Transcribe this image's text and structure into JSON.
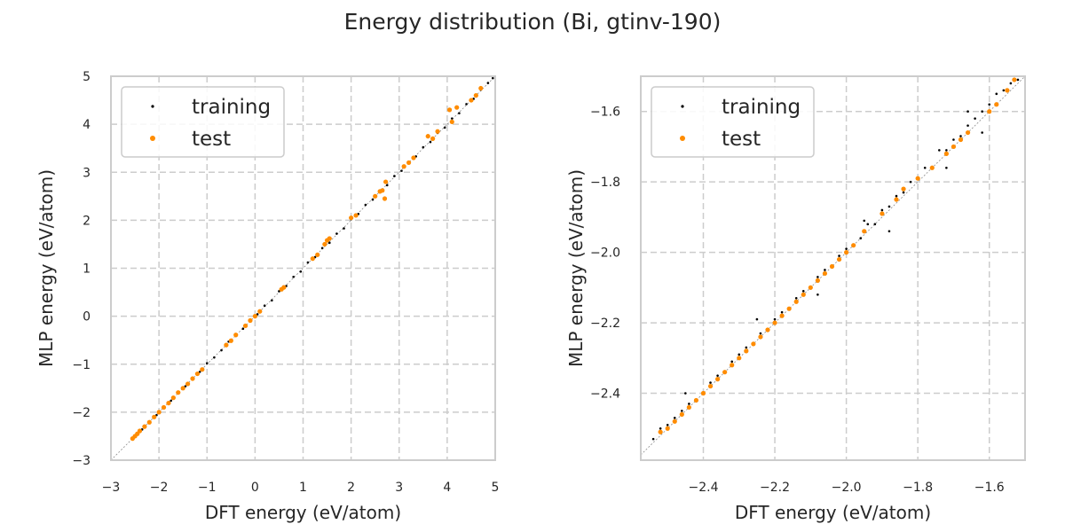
{
  "figure": {
    "suptitle": "Energy distribution (Bi, gtinv-190)"
  },
  "colors": {
    "training": "#000000",
    "test": "#ff8c00",
    "grid": "#cccccc",
    "spine": "#cccccc",
    "diagonal": "#8c8c8c"
  },
  "chart_data": [
    {
      "type": "scatter",
      "xlabel": "DFT energy (eV/atom)",
      "ylabel": "MLP energy (eV/atom)",
      "xlim": [
        -3,
        5
      ],
      "ylim": [
        -3,
        5
      ],
      "xticks": [
        -3,
        -2,
        -1,
        0,
        1,
        2,
        3,
        4,
        5
      ],
      "yticks": [
        -3,
        -2,
        -1,
        0,
        1,
        2,
        3,
        4,
        5
      ],
      "xtick_labels": [
        "−3",
        "−2",
        "−1",
        "0",
        "1",
        "2",
        "3",
        "4",
        "5"
      ],
      "ytick_labels": [
        "−3",
        "−2",
        "−1",
        "0",
        "1",
        "2",
        "3",
        "4",
        "5"
      ],
      "grid": true,
      "legend_position": "upper-left",
      "reference_line": "y = x",
      "series": [
        {
          "name": "training",
          "points": [
            [
              -2.55,
              -2.54
            ],
            [
              -2.45,
              -2.44
            ],
            [
              -2.35,
              -2.36
            ],
            [
              -2.2,
              -2.19
            ],
            [
              -2.05,
              -2.06
            ],
            [
              -1.9,
              -1.88
            ],
            [
              -1.75,
              -1.76
            ],
            [
              -1.6,
              -1.59
            ],
            [
              -1.45,
              -1.46
            ],
            [
              -1.3,
              -1.29
            ],
            [
              -1.15,
              -1.16
            ],
            [
              -1.0,
              -0.98
            ],
            [
              -0.85,
              -0.86
            ],
            [
              -0.7,
              -0.71
            ],
            [
              -0.55,
              -0.53
            ],
            [
              -0.4,
              -0.41
            ],
            [
              -0.25,
              -0.26
            ],
            [
              -0.1,
              -0.08
            ],
            [
              0.05,
              0.04
            ],
            [
              0.2,
              0.22
            ],
            [
              0.35,
              0.33
            ],
            [
              0.5,
              0.52
            ],
            [
              0.65,
              0.63
            ],
            [
              0.8,
              0.82
            ],
            [
              0.95,
              0.93
            ],
            [
              1.1,
              1.12
            ],
            [
              1.25,
              1.23
            ],
            [
              1.4,
              1.42
            ],
            [
              1.55,
              1.53
            ],
            [
              1.7,
              1.72
            ],
            [
              1.85,
              1.83
            ],
            [
              2.0,
              2.02
            ],
            [
              2.15,
              2.13
            ],
            [
              2.3,
              2.32
            ],
            [
              2.45,
              2.43
            ],
            [
              2.6,
              2.62
            ],
            [
              2.75,
              2.73
            ],
            [
              2.9,
              2.92
            ],
            [
              3.05,
              3.03
            ],
            [
              3.2,
              3.22
            ],
            [
              3.35,
              3.33
            ],
            [
              3.5,
              3.52
            ],
            [
              3.65,
              3.63
            ],
            [
              3.8,
              3.82
            ],
            [
              3.95,
              3.93
            ],
            [
              4.1,
              4.12
            ],
            [
              4.25,
              4.23
            ],
            [
              4.4,
              4.42
            ],
            [
              4.55,
              4.53
            ],
            [
              4.7,
              4.72
            ],
            [
              4.85,
              4.86
            ],
            [
              4.95,
              4.96
            ]
          ]
        },
        {
          "name": "test",
          "points": [
            [
              -2.55,
              -2.55
            ],
            [
              -2.5,
              -2.5
            ],
            [
              -2.45,
              -2.45
            ],
            [
              -2.4,
              -2.39
            ],
            [
              -2.3,
              -2.3
            ],
            [
              -2.2,
              -2.21
            ],
            [
              -2.1,
              -2.1
            ],
            [
              -2.0,
              -2.0
            ],
            [
              -1.9,
              -1.9
            ],
            [
              -1.8,
              -1.81
            ],
            [
              -1.7,
              -1.7
            ],
            [
              -1.6,
              -1.59
            ],
            [
              -1.5,
              -1.5
            ],
            [
              -1.4,
              -1.41
            ],
            [
              -1.3,
              -1.3
            ],
            [
              -1.2,
              -1.2
            ],
            [
              -1.1,
              -1.11
            ],
            [
              -0.6,
              -0.6
            ],
            [
              -0.5,
              -0.51
            ],
            [
              -0.4,
              -0.39
            ],
            [
              -0.2,
              -0.2
            ],
            [
              -0.1,
              -0.09
            ],
            [
              0.0,
              0.0
            ],
            [
              0.1,
              0.1
            ],
            [
              0.55,
              0.56
            ],
            [
              0.6,
              0.6
            ],
            [
              1.2,
              1.2
            ],
            [
              1.3,
              1.28
            ],
            [
              1.45,
              1.5
            ],
            [
              1.5,
              1.58
            ],
            [
              1.55,
              1.62
            ],
            [
              2.0,
              2.05
            ],
            [
              2.1,
              2.1
            ],
            [
              2.5,
              2.5
            ],
            [
              2.6,
              2.6
            ],
            [
              2.65,
              2.62
            ],
            [
              2.7,
              2.45
            ],
            [
              2.72,
              2.8
            ],
            [
              3.1,
              3.12
            ],
            [
              3.2,
              3.2
            ],
            [
              3.3,
              3.3
            ],
            [
              3.6,
              3.75
            ],
            [
              3.7,
              3.7
            ],
            [
              3.8,
              3.85
            ],
            [
              4.05,
              4.3
            ],
            [
              4.1,
              4.05
            ],
            [
              4.2,
              4.35
            ],
            [
              4.5,
              4.5
            ],
            [
              4.6,
              4.6
            ],
            [
              4.7,
              4.75
            ]
          ]
        }
      ]
    },
    {
      "type": "scatter",
      "xlabel": "DFT energy (eV/atom)",
      "ylabel": "MLP energy (eV/atom)",
      "xlim": [
        -2.575,
        -1.5
      ],
      "ylim": [
        -2.59,
        -1.5
      ],
      "xticks": [
        -2.4,
        -2.2,
        -2.0,
        -1.8,
        -1.6
      ],
      "yticks": [
        -2.4,
        -2.2,
        -2.0,
        -1.8,
        -1.6
      ],
      "xtick_labels": [
        "−2.4",
        "−2.2",
        "−2.0",
        "−1.8",
        "−1.6"
      ],
      "ytick_labels": [
        "−2.4",
        "−2.2",
        "−2.0",
        "−1.8",
        "−1.6"
      ],
      "grid": true,
      "legend_position": "upper-left",
      "reference_line": "y = x",
      "series": [
        {
          "name": "training",
          "points": [
            [
              -2.54,
              -2.53
            ],
            [
              -2.52,
              -2.5
            ],
            [
              -2.5,
              -2.49
            ],
            [
              -2.48,
              -2.47
            ],
            [
              -2.46,
              -2.45
            ],
            [
              -2.44,
              -2.43
            ],
            [
              -2.42,
              -2.42
            ],
            [
              -2.4,
              -2.4
            ],
            [
              -2.38,
              -2.37
            ],
            [
              -2.36,
              -2.35
            ],
            [
              -2.34,
              -2.34
            ],
            [
              -2.32,
              -2.31
            ],
            [
              -2.3,
              -2.29
            ],
            [
              -2.28,
              -2.27
            ],
            [
              -2.26,
              -2.26
            ],
            [
              -2.24,
              -2.23
            ],
            [
              -2.22,
              -2.22
            ],
            [
              -2.2,
              -2.19
            ],
            [
              -2.18,
              -2.17
            ],
            [
              -2.16,
              -2.16
            ],
            [
              -2.14,
              -2.13
            ],
            [
              -2.12,
              -2.11
            ],
            [
              -2.1,
              -2.1
            ],
            [
              -2.08,
              -2.07
            ],
            [
              -2.06,
              -2.05
            ],
            [
              -2.04,
              -2.04
            ],
            [
              -2.02,
              -2.01
            ],
            [
              -2.0,
              -1.99
            ],
            [
              -1.98,
              -1.98
            ],
            [
              -1.96,
              -1.96
            ],
            [
              -1.94,
              -1.92
            ],
            [
              -1.92,
              -1.92
            ],
            [
              -1.9,
              -1.88
            ],
            [
              -1.88,
              -1.87
            ],
            [
              -1.86,
              -1.84
            ],
            [
              -1.84,
              -1.83
            ],
            [
              -1.82,
              -1.8
            ],
            [
              -1.8,
              -1.79
            ],
            [
              -1.78,
              -1.76
            ],
            [
              -1.76,
              -1.76
            ],
            [
              -1.74,
              -1.71
            ],
            [
              -1.72,
              -1.71
            ],
            [
              -1.7,
              -1.68
            ],
            [
              -1.68,
              -1.67
            ],
            [
              -1.66,
              -1.64
            ],
            [
              -1.64,
              -1.62
            ],
            [
              -1.62,
              -1.6
            ],
            [
              -1.6,
              -1.58
            ],
            [
              -1.58,
              -1.55
            ],
            [
              -1.56,
              -1.54
            ],
            [
              -1.54,
              -1.52
            ],
            [
              -1.52,
              -1.51
            ],
            [
              -1.88,
              -1.94
            ],
            [
              -1.95,
              -1.91
            ],
            [
              -1.72,
              -1.76
            ],
            [
              -1.66,
              -1.6
            ],
            [
              -2.08,
              -2.12
            ],
            [
              -2.25,
              -2.19
            ],
            [
              -2.45,
              -2.4
            ],
            [
              -1.62,
              -1.66
            ]
          ]
        },
        {
          "name": "test",
          "points": [
            [
              -2.52,
              -2.51
            ],
            [
              -2.5,
              -2.5
            ],
            [
              -2.48,
              -2.48
            ],
            [
              -2.46,
              -2.46
            ],
            [
              -2.44,
              -2.44
            ],
            [
              -2.42,
              -2.42
            ],
            [
              -2.4,
              -2.4
            ],
            [
              -2.38,
              -2.38
            ],
            [
              -2.36,
              -2.36
            ],
            [
              -2.34,
              -2.34
            ],
            [
              -2.32,
              -2.32
            ],
            [
              -2.3,
              -2.3
            ],
            [
              -2.28,
              -2.28
            ],
            [
              -2.26,
              -2.26
            ],
            [
              -2.24,
              -2.24
            ],
            [
              -2.22,
              -2.22
            ],
            [
              -2.2,
              -2.2
            ],
            [
              -2.18,
              -2.18
            ],
            [
              -2.16,
              -2.16
            ],
            [
              -2.14,
              -2.14
            ],
            [
              -2.12,
              -2.12
            ],
            [
              -2.1,
              -2.1
            ],
            [
              -2.08,
              -2.08
            ],
            [
              -2.06,
              -2.06
            ],
            [
              -2.04,
              -2.04
            ],
            [
              -2.02,
              -2.02
            ],
            [
              -2.0,
              -2.0
            ],
            [
              -1.98,
              -1.98
            ],
            [
              -1.95,
              -1.94
            ],
            [
              -1.9,
              -1.89
            ],
            [
              -1.86,
              -1.85
            ],
            [
              -1.84,
              -1.82
            ],
            [
              -1.8,
              -1.79
            ],
            [
              -1.76,
              -1.76
            ],
            [
              -1.72,
              -1.72
            ],
            [
              -1.7,
              -1.7
            ],
            [
              -1.68,
              -1.68
            ],
            [
              -1.66,
              -1.66
            ],
            [
              -1.6,
              -1.6
            ],
            [
              -1.58,
              -1.58
            ],
            [
              -1.55,
              -1.54
            ],
            [
              -1.53,
              -1.51
            ]
          ]
        }
      ]
    }
  ]
}
